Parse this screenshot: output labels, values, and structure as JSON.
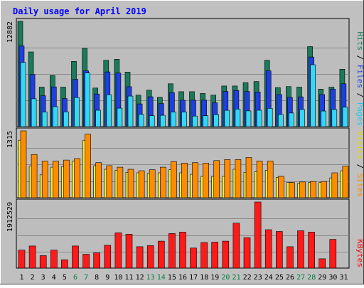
{
  "chart_data": [
    {
      "type": "bar",
      "title": "Daily usage for April 2019",
      "categories": [
        "1",
        "2",
        "3",
        "4",
        "5",
        "6",
        "7",
        "8",
        "9",
        "10",
        "11",
        "12",
        "13",
        "14",
        "15",
        "16",
        "17",
        "18",
        "19",
        "20",
        "21",
        "22",
        "23",
        "24",
        "25",
        "26",
        "27",
        "28",
        "29",
        "30",
        "31"
      ],
      "weekend_days": [
        "6",
        "7",
        "13",
        "14",
        "20",
        "21",
        "27",
        "28"
      ],
      "ylabel_max": "12882",
      "ylim": [
        0,
        12882
      ],
      "grid": true,
      "legend": {
        "placement": "right",
        "parts": [
          "Pages",
          "Files",
          "Hits"
        ],
        "separator": " / "
      },
      "series": [
        {
          "name": "Hits",
          "color": "#1a7a5c",
          "values": [
            12882,
            9140,
            4830,
            6250,
            4830,
            7980,
            9580,
            4720,
            8110,
            8240,
            6680,
            3850,
            4460,
            3580,
            5240,
            4270,
            4270,
            4060,
            3850,
            4970,
            4970,
            5380,
            5520,
            8110,
            4770,
            4900,
            4830,
            9790,
            4590,
            4830,
            7020
          ]
        },
        {
          "name": "Files",
          "color": "#1e3fe0",
          "values": [
            9870,
            6380,
            3780,
            4860,
            3440,
            5790,
            6820,
            3990,
            6690,
            6550,
            4880,
            2780,
            3650,
            2820,
            4150,
            3230,
            3230,
            3230,
            2920,
            4300,
            4410,
            4300,
            4230,
            6820,
            3920,
            3580,
            3640,
            8520,
            3920,
            4580,
            5240
          ]
        },
        {
          "name": "Pages",
          "color": "#33d8f5",
          "values": [
            7850,
            3400,
            1780,
            2440,
            1810,
            3550,
            6550,
            2000,
            3900,
            2250,
            3730,
            1500,
            1330,
            1380,
            1780,
            1780,
            1290,
            1330,
            1460,
            1990,
            2130,
            1920,
            2000,
            2240,
            1480,
            1660,
            2090,
            7570,
            1910,
            2090,
            2370
          ]
        }
      ]
    },
    {
      "type": "bar",
      "categories": [
        "1",
        "2",
        "3",
        "4",
        "5",
        "6",
        "7",
        "8",
        "9",
        "10",
        "11",
        "12",
        "13",
        "14",
        "15",
        "16",
        "17",
        "18",
        "19",
        "20",
        "21",
        "22",
        "23",
        "24",
        "25",
        "26",
        "27",
        "28",
        "29",
        "30",
        "31"
      ],
      "ylabel_max": "1315",
      "ylim": [
        0,
        1315
      ],
      "grid": true,
      "legend": {
        "placement": "right",
        "parts": [
          "Sites",
          "Visits"
        ],
        "separator": " / "
      },
      "series": [
        {
          "name": "Visits",
          "color": "#f6f02e",
          "values": [
            1130,
            620,
            450,
            600,
            610,
            720,
            1130,
            630,
            560,
            540,
            500,
            490,
            480,
            490,
            550,
            490,
            460,
            420,
            420,
            420,
            560,
            500,
            510,
            540,
            400,
            300,
            280,
            300,
            300,
            390,
            530
          ]
        },
        {
          "name": "Sites",
          "color": "#ff8c00",
          "values": [
            1315,
            850,
            720,
            720,
            740,
            770,
            1250,
            690,
            630,
            600,
            560,
            530,
            550,
            600,
            710,
            680,
            690,
            680,
            730,
            750,
            750,
            790,
            720,
            720,
            420,
            300,
            310,
            320,
            320,
            490,
            620
          ]
        }
      ]
    },
    {
      "type": "bar",
      "categories": [
        "1",
        "2",
        "3",
        "4",
        "5",
        "6",
        "7",
        "8",
        "9",
        "10",
        "11",
        "12",
        "13",
        "14",
        "15",
        "16",
        "17",
        "18",
        "19",
        "20",
        "21",
        "22",
        "23",
        "24",
        "25",
        "26",
        "27",
        "28",
        "29",
        "30",
        "31"
      ],
      "ylabel_max": "1912529",
      "ylim": [
        0,
        1912529
      ],
      "grid": true,
      "legend": {
        "placement": "right",
        "parts": [
          "KBytes"
        ],
        "separator": ""
      },
      "series": [
        {
          "name": "KBytes",
          "color": "#ff1a1a",
          "values": [
            520000,
            640000,
            360000,
            520000,
            240000,
            640000,
            400000,
            440000,
            660000,
            1020000,
            980000,
            620000,
            650000,
            780000,
            1000000,
            1040000,
            580000,
            740000,
            750000,
            780000,
            1300000,
            880000,
            1912529,
            1110000,
            1060000,
            620000,
            1080000,
            1040000,
            270000,
            830000,
            0
          ]
        }
      ]
    }
  ],
  "colors": {
    "frame": "#c0c0c0",
    "plot_bg": "#bdbdbd",
    "title": "#0000ff",
    "axis_label": "#000000",
    "weekday_label": "#000000",
    "weekend_label": "#008040",
    "kbytes_legend": "#ff0000",
    "sites_legend": "#ff8c00",
    "visits_legend": "#e6d800",
    "pages_legend": "#22c8ec",
    "files_legend": "#1e3fe0",
    "hits_legend": "#1a7a5c",
    "sep_legend": "#000000"
  }
}
